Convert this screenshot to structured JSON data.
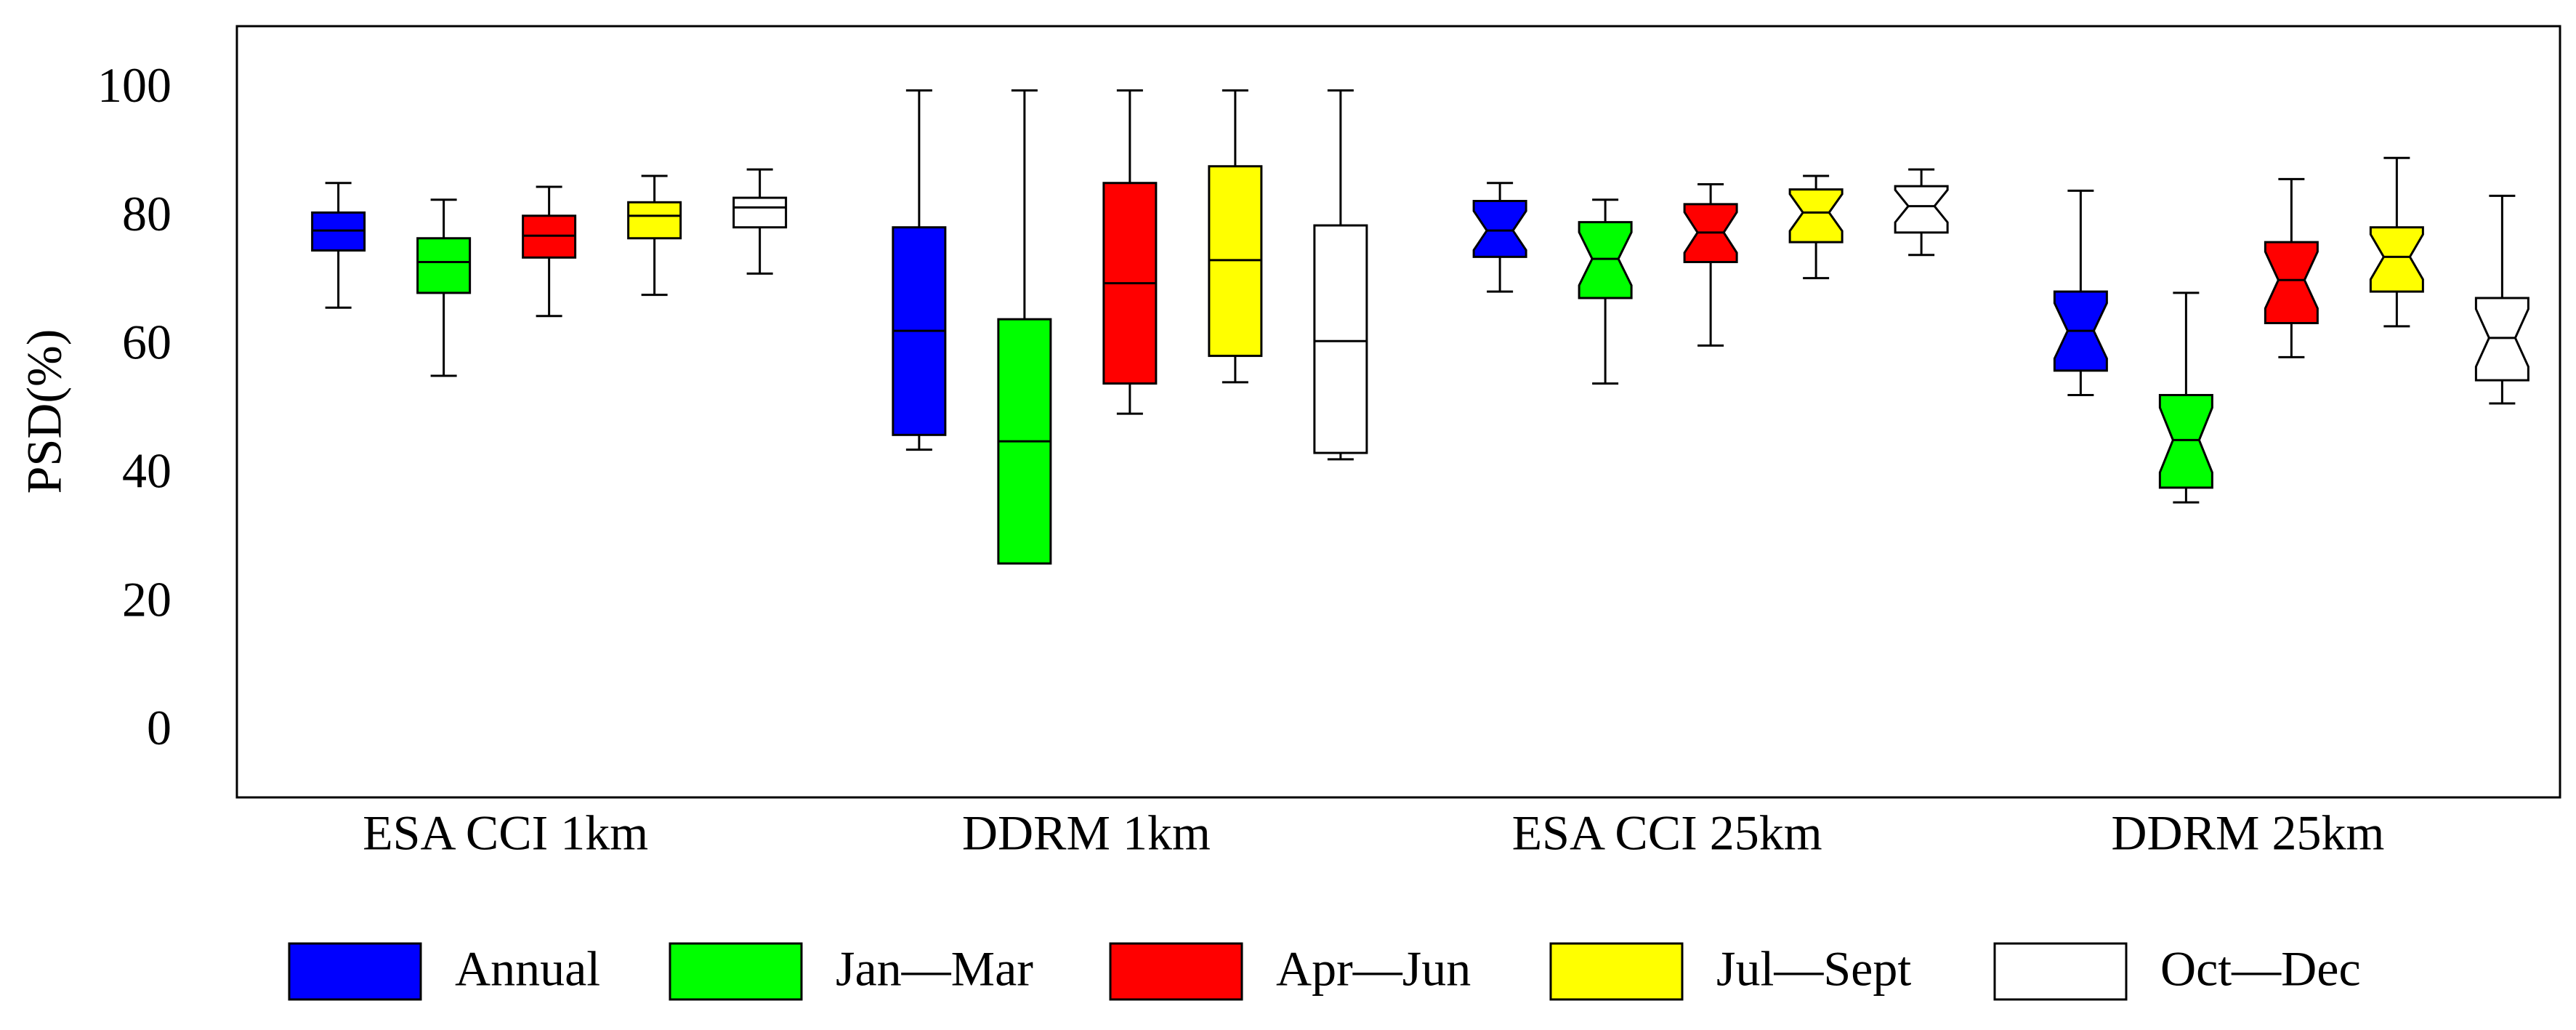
{
  "chart_data": {
    "type": "box",
    "ylabel": "PSD(%)",
    "categories": [
      "ESA CCI 1km",
      "DDRM 1km",
      "ESA CCI 25km",
      "DDRM 25km"
    ],
    "notched": [
      false,
      false,
      true,
      true
    ],
    "ylim": [
      -10,
      110
    ],
    "yticks": [
      0,
      20,
      40,
      60,
      80,
      100
    ],
    "grid": false,
    "legend": "bottom",
    "series": [
      {
        "name": "Annual",
        "color": "#0000ff",
        "values": [
          [
            66.2,
            75.1,
            78.2,
            81,
            85.6
          ],
          [
            44.1,
            46.4,
            62.6,
            78.7,
            100
          ],
          [
            68.7,
            74.1,
            78.2,
            82.8,
            85.6
          ],
          [
            52.6,
            56.4,
            62.6,
            68.7,
            84.4
          ]
        ]
      },
      {
        "name": "Jan—Mar",
        "color": "#00ff00",
        "values": [
          [
            55.6,
            68.5,
            73.3,
            77,
            83
          ],
          [
            27.7,
            26.4,
            45.4,
            64.4,
            100
          ],
          [
            54.4,
            67.7,
            73.8,
            79.5,
            83
          ],
          [
            35.9,
            38.2,
            45.6,
            52.6,
            68.5
          ]
        ]
      },
      {
        "name": "Apr—Jun",
        "color": "#ff0000",
        "values": [
          [
            64.9,
            74,
            77.4,
            80.5,
            85
          ],
          [
            49.7,
            54.4,
            70,
            85.6,
            100
          ],
          [
            60.3,
            73.3,
            77.9,
            82.3,
            85.4
          ],
          [
            58.5,
            63.8,
            70.5,
            76.4,
            86.2
          ]
        ]
      },
      {
        "name": "Jul—Sept",
        "color": "#ffff00",
        "values": [
          [
            68.2,
            77,
            80.5,
            82.6,
            86.7
          ],
          [
            54.6,
            58.7,
            73.6,
            88.2,
            100
          ],
          [
            70.8,
            76.4,
            81,
            84.6,
            86.7
          ],
          [
            63.3,
            68.7,
            74.1,
            78.7,
            89.5
          ]
        ]
      },
      {
        "name": "Oct—Dec",
        "color": "#ffffff",
        "values": [
          [
            71.5,
            78.7,
            81.8,
            83.3,
            87.7
          ],
          [
            42.6,
            43.6,
            61,
            79,
            100
          ],
          [
            74.4,
            77.9,
            82,
            85.1,
            87.7
          ],
          [
            51.3,
            54.9,
            61.5,
            67.7,
            83.6
          ]
        ]
      }
    ]
  }
}
